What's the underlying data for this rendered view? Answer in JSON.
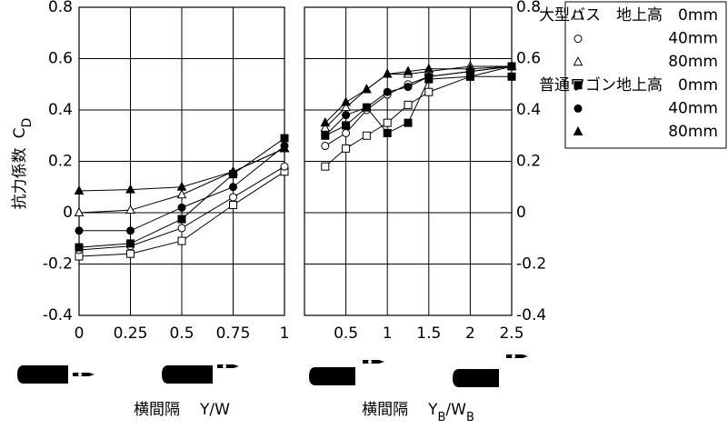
{
  "chart_data": {
    "type": "line",
    "ylim": [
      -0.4,
      0.8
    ],
    "yticks": [
      -0.4,
      -0.2,
      0,
      0.2,
      0.4,
      0.6,
      0.8
    ],
    "grid": true,
    "ylabel": [
      "抗力係数",
      "C",
      "D"
    ],
    "panels": [
      {
        "x": [
          0,
          0.25,
          0.5,
          0.75,
          1
        ],
        "xlim": [
          0,
          1
        ],
        "xticks": [
          0,
          0.25,
          0.5,
          0.75,
          1
        ],
        "xlabel": [
          "横間隔",
          "Y/W"
        ]
      },
      {
        "x": [
          0.25,
          0.5,
          0.75,
          1,
          1.25,
          1.5,
          2,
          2.5
        ],
        "xlim": [
          0,
          2.5
        ],
        "xticks": [
          0.5,
          1,
          1.5,
          2,
          2.5
        ],
        "xlabel": [
          "横間隔",
          "Y",
          "B",
          "/W",
          "B"
        ]
      }
    ],
    "series": [
      {
        "name": "大型バス　地上高　0mm",
        "marker": "square",
        "filled": false,
        "color": "#000000",
        "values": [
          [
            -0.17,
            -0.16,
            -0.11,
            0.03,
            0.16
          ],
          [
            0.18,
            0.25,
            0.3,
            0.35,
            0.42,
            0.47,
            0.53,
            0.57
          ]
        ]
      },
      {
        "name": "40mm",
        "marker": "circle",
        "filled": false,
        "color": "#000000",
        "values": [
          [
            -0.145,
            -0.13,
            -0.06,
            0.06,
            0.18
          ],
          [
            0.26,
            0.31,
            0.4,
            0.46,
            0.5,
            0.53,
            0.55,
            0.57
          ]
        ]
      },
      {
        "name": "80mm",
        "marker": "triangle",
        "filled": false,
        "color": "#000000",
        "values": [
          [
            0,
            0.01,
            0.07,
            0.16,
            0.25
          ],
          [
            0.33,
            0.41,
            0.48,
            0.54,
            0.54,
            0.55,
            0.57,
            0.57
          ]
        ]
      },
      {
        "name": "普通ワゴン地上高　0mm",
        "marker": "square",
        "filled": true,
        "color": "#000000",
        "values": [
          [
            -0.135,
            -0.12,
            -0.025,
            0.15,
            0.29
          ],
          [
            0.3,
            0.34,
            0.41,
            0.31,
            0.35,
            0.52,
            0.53,
            0.53
          ]
        ]
      },
      {
        "name": "40mm",
        "marker": "circle",
        "filled": true,
        "color": "#000000",
        "values": [
          [
            -0.07,
            -0.07,
            0.02,
            0.1,
            0.26
          ],
          [
            0.3,
            0.38,
            0.41,
            0.47,
            0.49,
            0.53,
            0.55,
            0.57
          ]
        ]
      },
      {
        "name": "80mm",
        "marker": "triangle",
        "filled": true,
        "color": "#000000",
        "values": [
          [
            0.085,
            0.09,
            0.1,
            0.16,
            0.25
          ],
          [
            0.35,
            0.43,
            0.48,
            0.54,
            0.55,
            0.56,
            0.56,
            0.57
          ]
        ]
      }
    ]
  }
}
